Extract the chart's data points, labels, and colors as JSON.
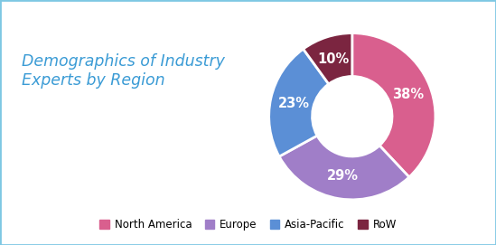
{
  "title": "Demographics of Industry\nExperts by Region",
  "title_color": "#3a9bd5",
  "title_fontsize": 12.5,
  "labels": [
    "North America",
    "Europe",
    "Asia-Pacific",
    "RoW"
  ],
  "values": [
    38,
    29,
    23,
    10
  ],
  "colors": [
    "#d95f8e",
    "#a07ec8",
    "#5b8fd6",
    "#7b2540"
  ],
  "pct_labels": [
    "38%",
    "29%",
    "23%",
    "10%"
  ],
  "background_color": "#ffffff",
  "border_color": "#7ec8e3",
  "figsize": [
    5.49,
    2.71
  ],
  "dpi": 100
}
